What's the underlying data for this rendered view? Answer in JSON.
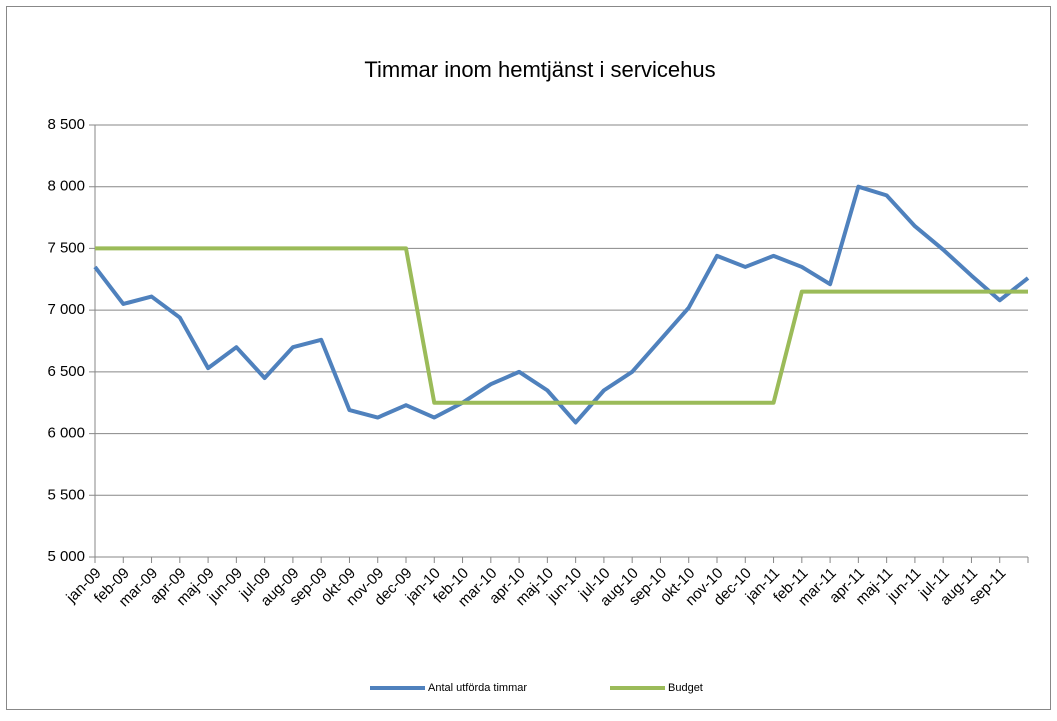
{
  "chart_data": {
    "type": "line",
    "title": "Timmar inom hemtjänst i servicehus",
    "categories": [
      "jan-09",
      "feb-09",
      "mar-09",
      "apr-09",
      "maj-09",
      "jun-09",
      "jul-09",
      "aug-09",
      "sep-09",
      "okt-09",
      "nov-09",
      "dec-09",
      "jan-10",
      "feb-10",
      "mar-10",
      "apr-10",
      "maj-10",
      "jun-10",
      "jul-10",
      "aug-10",
      "sep-10",
      "okt-10",
      "nov-10",
      "dec-10",
      "jan-11",
      "feb-11",
      "mar-11",
      "apr-11",
      "maj-11",
      "jun-11",
      "jul-11",
      "aug-11",
      "sep-11",
      null
    ],
    "series": [
      {
        "name": "Antal utförda timmar",
        "color": "#4f81bd",
        "values": [
          7350,
          7050,
          7110,
          6940,
          6530,
          6700,
          6450,
          6700,
          6760,
          6190,
          6130,
          6230,
          6130,
          6250,
          6400,
          6500,
          6350,
          6090,
          6350,
          6500,
          6760,
          7020,
          7440,
          7350,
          7440,
          7350,
          7210,
          8000,
          7930,
          7680,
          7490,
          7280,
          7080,
          7260
        ]
      },
      {
        "name": "Budget",
        "color": "#9bbb59",
        "values": [
          7500,
          7500,
          7500,
          7500,
          7500,
          7500,
          7500,
          7500,
          7500,
          7500,
          7500,
          7500,
          6250,
          6250,
          6250,
          6250,
          6250,
          6250,
          6250,
          6250,
          6250,
          6250,
          6250,
          6250,
          6250,
          7150,
          7150,
          7150,
          7150,
          7150,
          7150,
          7150,
          7150,
          7150
        ]
      }
    ],
    "ylim": [
      5000,
      8500
    ],
    "yticks": [
      {
        "value": 5000,
        "label": "5 000"
      },
      {
        "value": 5500,
        "label": "5 500"
      },
      {
        "value": 6000,
        "label": "6 000"
      },
      {
        "value": 6500,
        "label": "6 500"
      },
      {
        "value": 7000,
        "label": "7 000"
      },
      {
        "value": 7500,
        "label": "7 500"
      },
      {
        "value": 8000,
        "label": "8 000"
      },
      {
        "value": 8500,
        "label": "8 500"
      }
    ],
    "grid": true,
    "legend": "bottom"
  }
}
